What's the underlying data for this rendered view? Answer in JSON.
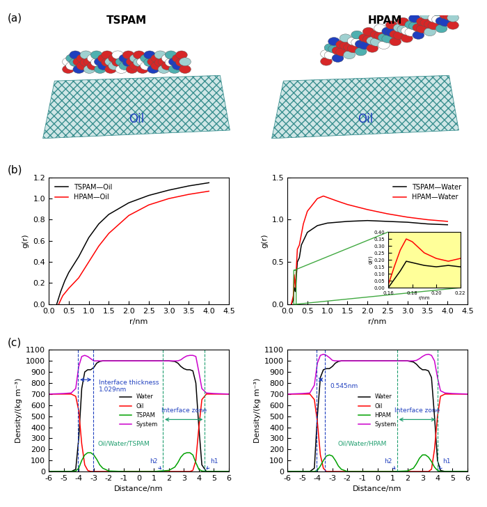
{
  "panels": [
    "(a)",
    "(b)",
    "(c)"
  ],
  "illustration": [
    {
      "molecule": "TSPAM",
      "phase": "Oil"
    },
    {
      "molecule": "HPAM",
      "phase": "Oil"
    }
  ],
  "chart_data": [
    {
      "type": "line",
      "x_label": "r/nm",
      "y_label": "g(r)",
      "legend": "upper left",
      "xlim": [
        0,
        4.5
      ],
      "xticks": [
        {
          "value": 0,
          "label": "0.0"
        },
        {
          "value": 0.5,
          "label": "0.5"
        },
        {
          "value": 1,
          "label": "1.0"
        },
        {
          "value": 1.5,
          "label": "1.5"
        },
        {
          "value": 2,
          "label": "2.0"
        },
        {
          "value": 2.5,
          "label": "2.5"
        },
        {
          "value": 3,
          "label": "3.0"
        },
        {
          "value": 3.5,
          "label": "3.5"
        },
        {
          "value": 4,
          "label": "4.0"
        },
        {
          "value": 4.5,
          "label": "4.5"
        }
      ],
      "ylim": [
        0,
        1.2
      ],
      "yticks": [
        {
          "value": 0,
          "label": "0.0"
        },
        {
          "value": 0.2,
          "label": "0.2"
        },
        {
          "value": 0.4,
          "label": "0.4"
        },
        {
          "value": 0.6,
          "label": "0.6"
        },
        {
          "value": 0.8,
          "label": "0.8"
        },
        {
          "value": 1.0,
          "label": "1.0"
        },
        {
          "value": 1.2,
          "label": "1.2"
        }
      ],
      "series": [
        {
          "name": "TSPAM—Oil",
          "color": "#000000",
          "line_style": "solid",
          "x": [
            0.2,
            0.3,
            0.4,
            0.5,
            0.75,
            1.0,
            1.25,
            1.5,
            2.0,
            2.5,
            3.0,
            3.5,
            4.0
          ],
          "values": [
            0.0,
            0.12,
            0.22,
            0.3,
            0.45,
            0.63,
            0.76,
            0.85,
            0.96,
            1.03,
            1.08,
            1.12,
            1.15
          ]
        },
        {
          "name": "HPAM—Oil",
          "color": "#ff0000",
          "line_style": "solid",
          "x": [
            0.25,
            0.35,
            0.5,
            0.75,
            1.0,
            1.25,
            1.5,
            2.0,
            2.5,
            3.0,
            3.5,
            4.0
          ],
          "values": [
            0.0,
            0.08,
            0.15,
            0.25,
            0.4,
            0.55,
            0.67,
            0.84,
            0.94,
            1.0,
            1.04,
            1.07
          ]
        }
      ]
    },
    {
      "type": "line",
      "x_label": "r/nm",
      "y_label": "g(r)",
      "legend": "upper right",
      "xlim": [
        0,
        4.5
      ],
      "xticks": [
        {
          "value": 0,
          "label": "0.0"
        },
        {
          "value": 0.5,
          "label": "0.5"
        },
        {
          "value": 1,
          "label": "1.0"
        },
        {
          "value": 1.5,
          "label": "1.5"
        },
        {
          "value": 2,
          "label": "2.0"
        },
        {
          "value": 2.5,
          "label": "2.5"
        },
        {
          "value": 3,
          "label": "3.0"
        },
        {
          "value": 3.5,
          "label": "3.5"
        },
        {
          "value": 4,
          "label": "4.0"
        },
        {
          "value": 4.5,
          "label": "4.5"
        }
      ],
      "ylim": [
        0,
        1.5
      ],
      "yticks": [
        {
          "value": 0,
          "label": "0.0"
        },
        {
          "value": 0.5,
          "label": "0.5"
        },
        {
          "value": 1.0,
          "label": "1.0"
        },
        {
          "value": 1.5,
          "label": "1.5"
        }
      ],
      "series": [
        {
          "name": "TSPAM—Water",
          "color": "#000000",
          "line_style": "solid",
          "x": [
            0.1,
            0.15,
            0.17,
            0.2,
            0.25,
            0.3,
            0.35,
            0.5,
            0.75,
            1.0,
            1.5,
            2.0,
            2.5,
            3.0,
            3.5,
            4.0
          ],
          "values": [
            0.0,
            0.05,
            0.2,
            0.15,
            0.5,
            0.55,
            0.7,
            0.85,
            0.93,
            0.96,
            0.98,
            0.99,
            0.98,
            0.97,
            0.95,
            0.94
          ]
        },
        {
          "name": "HPAM—Water",
          "color": "#ff0000",
          "line_style": "solid",
          "x": [
            0.1,
            0.15,
            0.17,
            0.2,
            0.25,
            0.3,
            0.4,
            0.5,
            0.75,
            0.9,
            1.25,
            1.5,
            2.0,
            2.5,
            3.0,
            3.5,
            4.0
          ],
          "values": [
            0.0,
            0.1,
            0.35,
            0.2,
            0.65,
            0.7,
            0.95,
            1.1,
            1.25,
            1.28,
            1.22,
            1.18,
            1.12,
            1.07,
            1.03,
            1.0,
            0.98
          ]
        }
      ]
    },
    {
      "type": "line",
      "x_label": "r/nm",
      "y_label": "g(r)",
      "xlim": [
        0.16,
        0.22
      ],
      "xticks": [
        {
          "value": 0.16,
          "label": "0.16"
        },
        {
          "value": 0.18,
          "label": "0.18"
        },
        {
          "value": 0.2,
          "label": "0.20"
        },
        {
          "value": 0.22,
          "label": "0.22"
        }
      ],
      "ylim": [
        0,
        0.4
      ],
      "yticks": [
        {
          "value": 0,
          "label": "0.00"
        },
        {
          "value": 0.05,
          "label": "0.05"
        },
        {
          "value": 0.1,
          "label": "0.10"
        },
        {
          "value": 0.15,
          "label": "0.15"
        },
        {
          "value": 0.2,
          "label": "0.20"
        },
        {
          "value": 0.25,
          "label": "0.25"
        },
        {
          "value": 0.3,
          "label": "0.30"
        },
        {
          "value": 0.35,
          "label": "0.35"
        },
        {
          "value": 0.4,
          "label": "0.40"
        }
      ],
      "series": [
        {
          "color": "#000000",
          "line_style": "solid",
          "x": [
            0.16,
            0.165,
            0.17,
            0.175,
            0.18,
            0.19,
            0.2,
            0.21,
            0.22
          ],
          "values": [
            0.0,
            0.06,
            0.12,
            0.19,
            0.18,
            0.16,
            0.15,
            0.16,
            0.15
          ]
        },
        {
          "color": "#ff0000",
          "line_style": "solid",
          "x": [
            0.16,
            0.165,
            0.17,
            0.175,
            0.18,
            0.19,
            0.2,
            0.21,
            0.22
          ],
          "values": [
            0.02,
            0.15,
            0.27,
            0.35,
            0.33,
            0.25,
            0.21,
            0.19,
            0.21
          ]
        }
      ]
    },
    {
      "type": "line",
      "x_label": "Distance/nm",
      "y_label": "Density/(kg m⁻³)",
      "legend": "center",
      "xlim": [
        -6,
        6
      ],
      "xticks": [
        -6,
        -5,
        -4,
        -3,
        -2,
        -1,
        0,
        1,
        2,
        3,
        4,
        5,
        6
      ],
      "ylim": [
        0,
        1100
      ],
      "yticks": [
        0,
        100,
        200,
        300,
        400,
        500,
        600,
        700,
        800,
        900,
        1000,
        1100
      ],
      "x": [
        -6,
        -5,
        -4.5,
        -4.2,
        -4.0,
        -3.8,
        -3.6,
        -3.4,
        -3.2,
        -3.0,
        -2.8,
        -2.6,
        -2.4,
        -2.0,
        -1.0,
        0,
        1.0,
        2.0,
        2.4,
        2.6,
        2.8,
        3.0,
        3.2,
        3.4,
        3.6,
        3.8,
        4.0,
        4.2,
        4.5,
        5,
        6
      ],
      "series": [
        {
          "name": "Water",
          "color": "#000000",
          "line_style": "solid",
          "values": [
            0,
            0,
            0,
            20,
            300,
            750,
            900,
            920,
            920,
            940,
            980,
            995,
            1000,
            1000,
            1000,
            1000,
            1000,
            1000,
            995,
            980,
            950,
            930,
            920,
            920,
            910,
            800,
            400,
            60,
            0,
            0,
            0
          ]
        },
        {
          "name": "Oil",
          "color": "#ff0000",
          "line_style": "solid",
          "values": [
            700,
            700,
            700,
            680,
            550,
            250,
            60,
            10,
            0,
            0,
            0,
            0,
            0,
            0,
            0,
            0,
            0,
            0,
            0,
            0,
            0,
            0,
            0,
            0,
            10,
            100,
            400,
            650,
            700,
            700,
            700
          ]
        },
        {
          "name": "TSPAM",
          "color": "#00a000",
          "line_style": "solid",
          "values": [
            0,
            0,
            0,
            5,
            30,
            100,
            150,
            170,
            170,
            150,
            110,
            60,
            30,
            5,
            0,
            0,
            0,
            10,
            40,
            80,
            130,
            160,
            170,
            170,
            150,
            80,
            20,
            5,
            0,
            0,
            0
          ]
        },
        {
          "name": "System",
          "color": "#cc00cc",
          "line_style": "solid",
          "values": [
            700,
            705,
            710,
            750,
            950,
            1040,
            1050,
            1040,
            1020,
            1000,
            1000,
            1000,
            1000,
            1000,
            1000,
            1000,
            1000,
            1000,
            1000,
            1000,
            1010,
            1030,
            1045,
            1050,
            1050,
            1040,
            900,
            750,
            710,
            705,
            700
          ]
        }
      ],
      "thickness_label": "Interface thickness\n1.029nm",
      "thickness_bounds": [
        -4.05,
        -3.02
      ],
      "zone_label": "Interface zone",
      "zone_bounds": [
        1.6,
        4.4
      ],
      "mixture_label": "Oil/Water/TSPAM",
      "h_labels": [
        "h2",
        "h1"
      ]
    },
    {
      "type": "line",
      "x_label": "Distance/nm",
      "y_label": "Density/(kg m⁻³)",
      "legend": "center",
      "xlim": [
        -6,
        6
      ],
      "xticks": [
        -6,
        -5,
        -4,
        -3,
        -2,
        -1,
        0,
        1,
        2,
        3,
        4,
        5,
        6
      ],
      "ylim": [
        0,
        1100
      ],
      "yticks": [
        0,
        100,
        200,
        300,
        400,
        500,
        600,
        700,
        800,
        900,
        1000,
        1100
      ],
      "x": [
        -6,
        -5,
        -4.5,
        -4.2,
        -4.0,
        -3.8,
        -3.6,
        -3.4,
        -3.2,
        -3.0,
        -2.8,
        -2.6,
        -2.4,
        -2.0,
        -1.0,
        0,
        1.0,
        2.0,
        2.4,
        2.6,
        2.8,
        3.0,
        3.2,
        3.4,
        3.6,
        3.8,
        4.0,
        4.2,
        4.5,
        5,
        6
      ],
      "series": [
        {
          "name": "Water",
          "color": "#000000",
          "line_style": "solid",
          "values": [
            0,
            0,
            0,
            30,
            500,
            850,
            920,
            930,
            930,
            950,
            980,
            995,
            1000,
            1000,
            1000,
            1000,
            1000,
            1000,
            990,
            970,
            940,
            920,
            920,
            910,
            850,
            500,
            100,
            10,
            0,
            0,
            0
          ]
        },
        {
          "name": "Oil",
          "color": "#ff0000",
          "line_style": "solid",
          "values": [
            700,
            700,
            700,
            650,
            450,
            150,
            30,
            0,
            0,
            0,
            0,
            0,
            0,
            0,
            0,
            0,
            0,
            0,
            0,
            0,
            0,
            0,
            0,
            0,
            20,
            200,
            500,
            680,
            700,
            700,
            700
          ]
        },
        {
          "name": "HPAM",
          "color": "#00a000",
          "line_style": "solid",
          "values": [
            0,
            0,
            0,
            0,
            10,
            50,
            100,
            140,
            150,
            140,
            100,
            50,
            20,
            0,
            0,
            0,
            0,
            5,
            30,
            70,
            120,
            150,
            150,
            130,
            90,
            40,
            10,
            0,
            0,
            0,
            0
          ]
        },
        {
          "name": "System",
          "color": "#cc00cc",
          "line_style": "solid",
          "values": [
            700,
            705,
            710,
            780,
            980,
            1050,
            1060,
            1050,
            1030,
            1005,
            1000,
            1000,
            1000,
            1000,
            1000,
            1000,
            1000,
            1000,
            1000,
            1005,
            1020,
            1040,
            1055,
            1060,
            1050,
            1000,
            850,
            730,
            710,
            705,
            700
          ]
        }
      ],
      "thickness_label": "0.545nm",
      "thickness_bounds": [
        -4.05,
        -3.5
      ],
      "zone_label": "Interface zone",
      "zone_bounds": [
        1.3,
        4.0
      ],
      "mixture_label": "Oil/Water/HPAM",
      "h_labels": [
        "h2",
        "h1"
      ]
    }
  ]
}
